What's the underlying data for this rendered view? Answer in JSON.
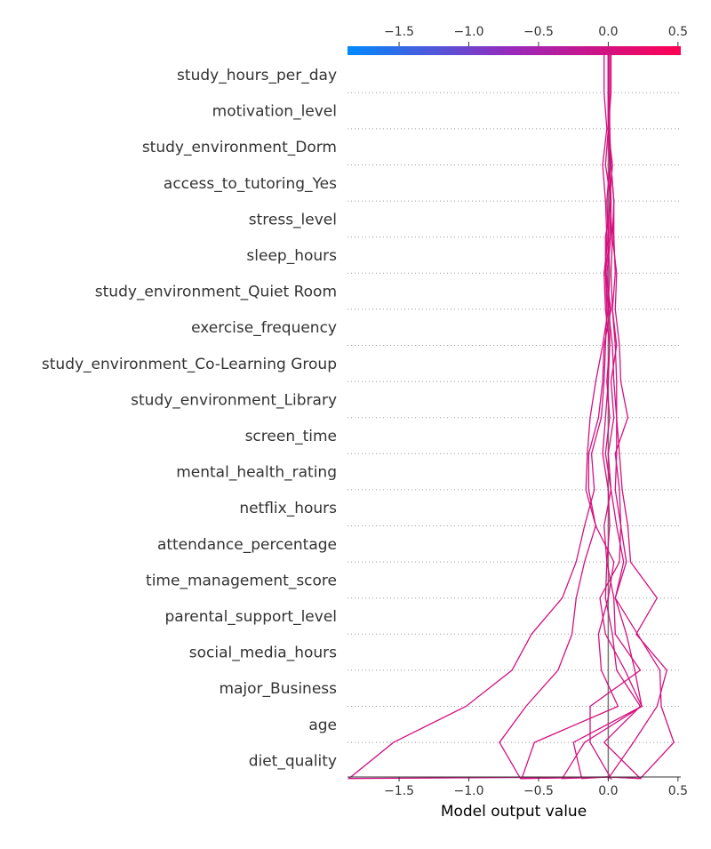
{
  "chart_data": {
    "type": "line",
    "variant": "shap-decision-plot",
    "xlabel": "Model output value",
    "xlim": [
      -1.87,
      0.52
    ],
    "x_ticks": [
      -1.5,
      -1.0,
      -0.5,
      0.0,
      0.5
    ],
    "x_tick_labels": [
      "−1.5",
      "−1.0",
      "−0.5",
      "0.0",
      "0.5"
    ],
    "base_value": 0.0,
    "colorbar": {
      "low": "#008afb",
      "mid": "#9a28ba",
      "high": "#ff0052",
      "range": [
        -1.87,
        0.52
      ]
    },
    "features": [
      "study_hours_per_day",
      "motivation_level",
      "study_environment_Dorm",
      "access_to_tutoring_Yes",
      "stress_level",
      "sleep_hours",
      "study_environment_Quiet Room",
      "exercise_frequency",
      "study_environment_Co-Learning Group",
      "study_environment_Library",
      "screen_time",
      "mental_health_rating",
      "netflix_hours",
      "attendance_percentage",
      "time_management_score",
      "parental_support_level",
      "social_media_hours",
      "major_Business",
      "age",
      "diet_quality"
    ],
    "grid": "dotted-horizontal",
    "series": [
      {
        "values": [
          -0.03,
          -0.01,
          -0.04,
          -0.02,
          -0.01,
          -0.02,
          -0.01,
          -0.02,
          -0.03,
          -0.05,
          -0.12,
          -0.1,
          -0.17,
          -0.23,
          -0.33,
          -0.55,
          -0.69,
          -1.02,
          -1.54,
          -1.86
        ]
      },
      {
        "values": [
          0.0,
          0.0,
          -0.02,
          0.02,
          -0.02,
          -0.02,
          0.02,
          -0.03,
          -0.04,
          -0.07,
          -0.14,
          -0.14,
          -0.09,
          -0.17,
          -0.23,
          -0.26,
          -0.36,
          -0.59,
          -0.78,
          -0.63
        ]
      },
      {
        "values": [
          0.01,
          0.0,
          0.01,
          0.02,
          0.01,
          -0.02,
          0.0,
          -0.04,
          -0.09,
          -0.13,
          -0.15,
          -0.16,
          -0.09,
          0.04,
          0.0,
          -0.07,
          -0.05,
          0.07,
          -0.53,
          -0.62
        ]
      },
      {
        "values": [
          0.0,
          0.0,
          0.02,
          0.04,
          0.03,
          0.06,
          0.05,
          0.08,
          0.09,
          0.14,
          0.05,
          0.08,
          0.09,
          0.08,
          -0.06,
          -0.02,
          0.12,
          0.24,
          -0.17,
          -0.33
        ]
      },
      {
        "values": [
          0.0,
          0.01,
          0.01,
          0.01,
          0.03,
          0.02,
          0.03,
          0.05,
          0.06,
          0.06,
          0.06,
          0.05,
          0.09,
          0.13,
          0.05,
          0.21,
          0.37,
          0.38,
          0.47,
          0.23
        ]
      },
      {
        "values": [
          0.0,
          0.0,
          0.01,
          -0.01,
          0.0,
          0.01,
          0.0,
          0.03,
          0.04,
          0.06,
          0.08,
          0.1,
          0.14,
          0.16,
          0.35,
          0.2,
          0.42,
          0.35,
          0.18,
          0.0
        ]
      },
      {
        "values": [
          0.01,
          0.01,
          0.02,
          0.04,
          0.04,
          0.05,
          0.03,
          0.06,
          0.02,
          0.04,
          0.0,
          0.02,
          0.06,
          0.11,
          0.05,
          0.13,
          0.19,
          0.24,
          -0.25,
          -0.19
        ]
      },
      {
        "values": [
          0.02,
          0.0,
          0.03,
          0.01,
          0.0,
          -0.03,
          -0.02,
          0.01,
          -0.01,
          0.01,
          -0.02,
          0.02,
          -0.03,
          -0.01,
          0.04,
          0.05,
          0.23,
          -0.13,
          -0.13,
          0.02
        ]
      },
      {
        "values": [
          0.0,
          0.01,
          0.01,
          0.02,
          0.02,
          -0.01,
          0.01,
          0.01,
          0.0,
          -0.02,
          -0.04,
          0.0,
          0.01,
          -0.01,
          -0.02,
          0.03,
          0.06,
          0.23,
          -0.03,
          0.23
        ]
      }
    ]
  }
}
